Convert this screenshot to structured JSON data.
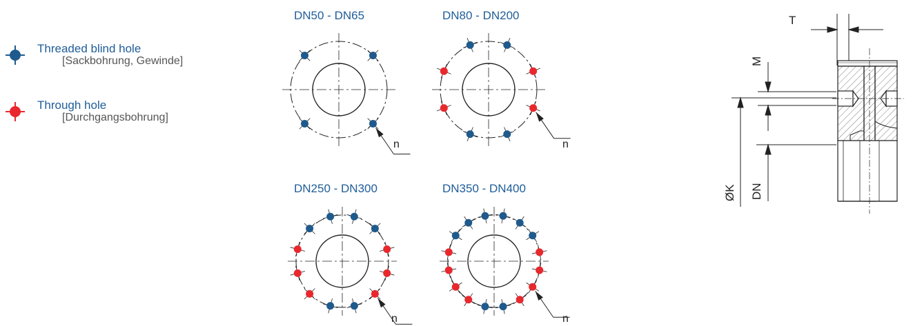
{
  "legend": {
    "blind": {
      "title": "Threaded blind hole",
      "subtitle": "[Sackbohrung, Gewinde]"
    },
    "through": {
      "title": "Through hole",
      "subtitle": "[Durchgangsbohrung]"
    }
  },
  "patterns": {
    "p1": {
      "caption": "DN50 - DN65",
      "n_label": "n"
    },
    "p2": {
      "caption": "DN80 - DN200",
      "n_label": "n"
    },
    "p3": {
      "caption": "DN250 - DN300",
      "n_label": "n"
    },
    "p4": {
      "caption": "DN350 - DN400",
      "n_label": "n"
    }
  },
  "section": {
    "t_label": "T",
    "m_label": "M",
    "k_label": "ØK",
    "dn_label": "DN"
  },
  "colors": {
    "blind": "#1f5a8c",
    "through": "#e8282d",
    "line": "#222222",
    "caption": "#1f5d99"
  }
}
